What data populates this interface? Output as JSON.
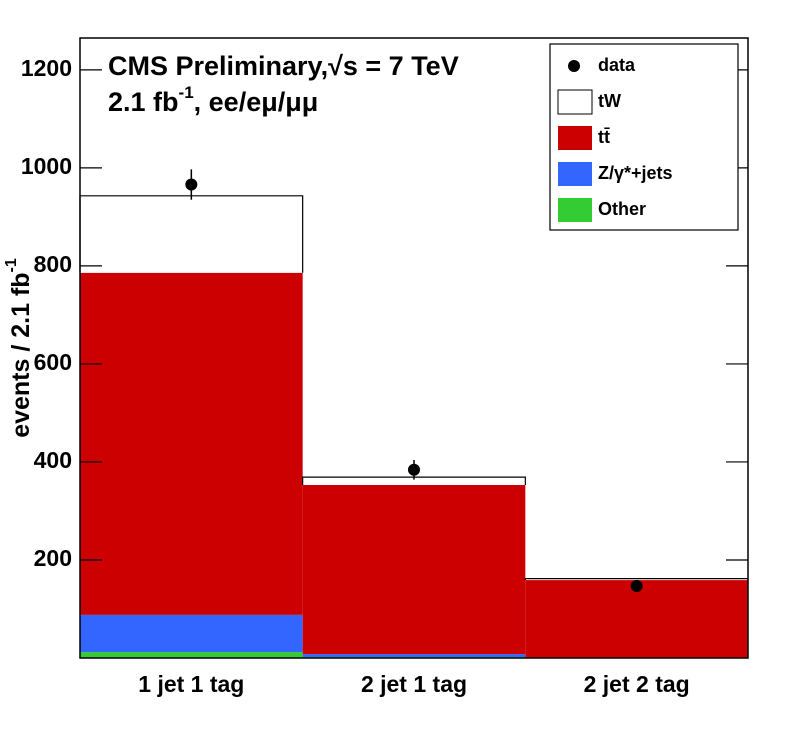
{
  "chart_data": {
    "type": "stacked_bar",
    "title": "CMS Preliminary,√s = 7 TeV",
    "subtitle_parts": [
      "2.1 fb",
      "-1",
      ", ee/eμ/μμ"
    ],
    "ylabel_parts": [
      "events / 2.1 fb",
      "-1"
    ],
    "categories": [
      "1 jet 1 tag",
      "2 jet 1 tag",
      "2 jet 2 tag"
    ],
    "series": [
      {
        "name": "Other",
        "color": "#33cc33",
        "values": [
          12,
          2,
          0
        ]
      },
      {
        "name": "Z/γ*+jets",
        "color": "#3366ff",
        "values": [
          76,
          6,
          1
        ]
      },
      {
        "name": "tt̄",
        "color": "#cc0000",
        "values": [
          698,
          345,
          158
        ]
      },
      {
        "name": "tW",
        "color": "#ffffff",
        "values": [
          157,
          16,
          3
        ]
      }
    ],
    "data_points": {
      "name": "data",
      "values": [
        966,
        384,
        147
      ],
      "errors": [
        31,
        20,
        12
      ]
    },
    "ylim": [
      0,
      1265
    ],
    "yticks": [
      200,
      400,
      600,
      800,
      1000,
      1200
    ],
    "legend": "top-right"
  }
}
